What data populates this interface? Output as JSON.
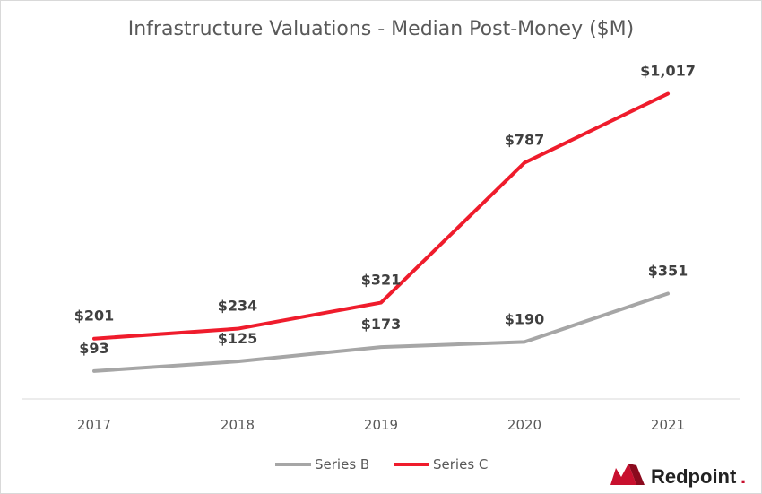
{
  "chart_data": {
    "type": "line",
    "title": "Infrastructure Valuations - Median Post-Money ($M)",
    "categories": [
      "2017",
      "2018",
      "2019",
      "2020",
      "2021"
    ],
    "series": [
      {
        "name": "Series B",
        "color": "#a6a6a6",
        "values": [
          93,
          125,
          173,
          190,
          351
        ],
        "labels": [
          "$93",
          "$125",
          "$173",
          "$190",
          "$351"
        ]
      },
      {
        "name": "Series C",
        "color": "#ef1c2c",
        "values": [
          201,
          234,
          321,
          787,
          1017
        ],
        "labels": [
          "$201",
          "$234",
          "$321",
          "$787",
          "$1,017"
        ]
      }
    ],
    "ylim": [
      0,
      1150
    ],
    "grid": false,
    "legend": "bottom"
  },
  "branding": {
    "logo_text": "Redpoint",
    "logo_dot": ".",
    "accent": "#c8102e"
  }
}
